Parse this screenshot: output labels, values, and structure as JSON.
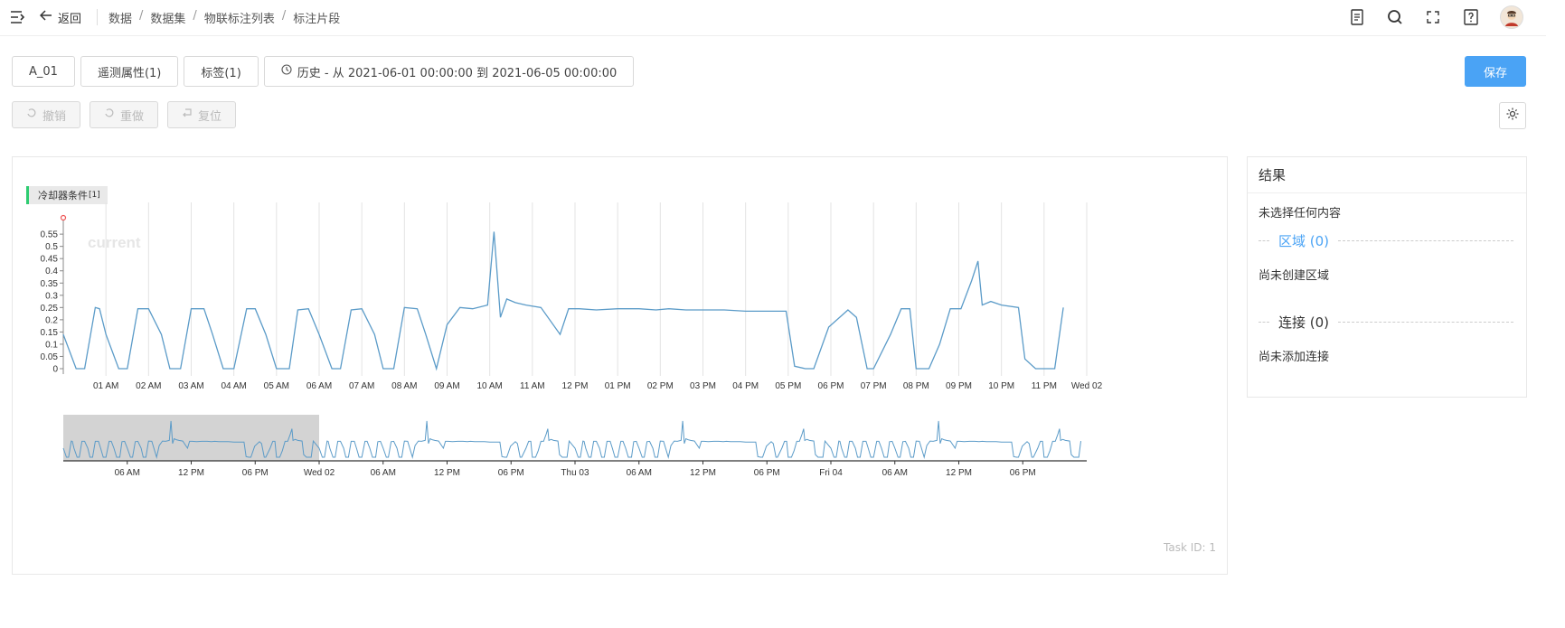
{
  "header": {
    "back_label": "返回",
    "breadcrumbs": [
      "数据",
      "数据集",
      "物联标注列表",
      "标注片段"
    ],
    "icons": [
      "document-icon",
      "search-icon",
      "fullscreen-icon",
      "help-icon",
      "avatar"
    ]
  },
  "toolbar": {
    "tabs": [
      "A_01",
      "遥测属性(1)",
      "标签(1)"
    ],
    "time_range": "历史 - 从 2021-06-01 00:00:00 到 2021-06-05 00:00:00",
    "save_label": "保存",
    "undo_label": "撤销",
    "redo_label": "重做",
    "reset_label": "复位"
  },
  "chart": {
    "legend_label": "冷却器条件",
    "legend_sup": "[1]",
    "series_label": "current",
    "task_id": "Task ID: 1"
  },
  "chart_data": [
    {
      "type": "line",
      "title": "",
      "series": [
        {
          "name": "current"
        }
      ],
      "yticks": [
        "0",
        "0.05",
        "0.1",
        "0.15",
        "0.2",
        "0.25",
        "0.3",
        "0.35",
        "0.4",
        "0.45",
        "0.5",
        "0.55"
      ],
      "ylim": [
        0,
        0.58
      ],
      "xticks": [
        "01 AM",
        "02 AM",
        "03 AM",
        "04 AM",
        "05 AM",
        "06 AM",
        "07 AM",
        "08 AM",
        "09 AM",
        "10 AM",
        "11 AM",
        "12 PM",
        "01 PM",
        "02 PM",
        "03 PM",
        "04 PM",
        "05 PM",
        "06 PM",
        "07 PM",
        "08 PM",
        "09 PM",
        "10 PM",
        "11 PM",
        "Wed 02"
      ],
      "x_hours": [
        0,
        0.3,
        0.5,
        0.75,
        0.85,
        1.0,
        1.3,
        1.5,
        1.75,
        2.0,
        2.3,
        2.5,
        2.75,
        3.0,
        3.3,
        3.5,
        3.75,
        4.0,
        4.3,
        4.5,
        4.75,
        5.0,
        5.3,
        5.5,
        5.75,
        6.0,
        6.3,
        6.5,
        6.75,
        7.0,
        7.3,
        7.5,
        7.75,
        8.0,
        8.3,
        8.5,
        8.75,
        9.0,
        9.3,
        9.6,
        9.95,
        10.1,
        10.25,
        10.4,
        10.6,
        10.85,
        11.2,
        11.65,
        11.85,
        12.1,
        12.5,
        13.0,
        13.5,
        13.9,
        14.2,
        14.6,
        15.0,
        15.5,
        16.0,
        16.5,
        16.95,
        17.15,
        17.4,
        17.6,
        17.95,
        18.4,
        18.6,
        18.85,
        19.0,
        19.4,
        19.65,
        19.85,
        20.0,
        20.3,
        20.55,
        20.8,
        21.05,
        21.3,
        21.45,
        21.55,
        21.75,
        22.0,
        22.4,
        22.55,
        22.8,
        23.0,
        23.25,
        23.45
      ],
      "values": [
        0.14,
        0.0,
        0.0,
        0.25,
        0.245,
        0.14,
        0.0,
        0.0,
        0.245,
        0.245,
        0.14,
        0.0,
        0.0,
        0.245,
        0.245,
        0.14,
        0.0,
        0.0,
        0.245,
        0.245,
        0.14,
        0.0,
        0.0,
        0.24,
        0.245,
        0.14,
        0.0,
        0.0,
        0.24,
        0.245,
        0.14,
        0.0,
        0.0,
        0.25,
        0.245,
        0.14,
        0.0,
        0.18,
        0.25,
        0.245,
        0.26,
        0.56,
        0.21,
        0.285,
        0.27,
        0.26,
        0.25,
        0.14,
        0.245,
        0.245,
        0.24,
        0.245,
        0.245,
        0.24,
        0.245,
        0.24,
        0.24,
        0.24,
        0.235,
        0.235,
        0.235,
        0.01,
        0.0,
        0.0,
        0.17,
        0.24,
        0.21,
        0.0,
        0.0,
        0.14,
        0.245,
        0.245,
        0.0,
        0.0,
        0.1,
        0.245,
        0.245,
        0.36,
        0.44,
        0.26,
        0.275,
        0.26,
        0.25,
        0.04,
        0.0,
        0.0,
        0.0,
        0.25
      ]
    },
    {
      "type": "line",
      "title": "",
      "xticks": [
        "06 AM",
        "12 PM",
        "06 PM",
        "Wed 02",
        "06 AM",
        "12 PM",
        "06 PM",
        "Thu 03",
        "06 AM",
        "12 PM",
        "06 PM",
        "Fri 04",
        "06 AM",
        "12 PM",
        "06 PM"
      ],
      "brush_selection": [
        "2021-06-01 00:00",
        "2021-06-02 00:00"
      ]
    }
  ],
  "results": {
    "title": "结果",
    "no_selection": "未选择任何内容",
    "region_label": "区域 (0)",
    "region_empty": "尚未创建区域",
    "connect_label": "连接 (0)",
    "connect_empty": "尚未添加连接"
  },
  "colors": {
    "accent": "#4aa3f5",
    "series": "#5b9bc8",
    "legend_marker": "#2ecc71"
  }
}
